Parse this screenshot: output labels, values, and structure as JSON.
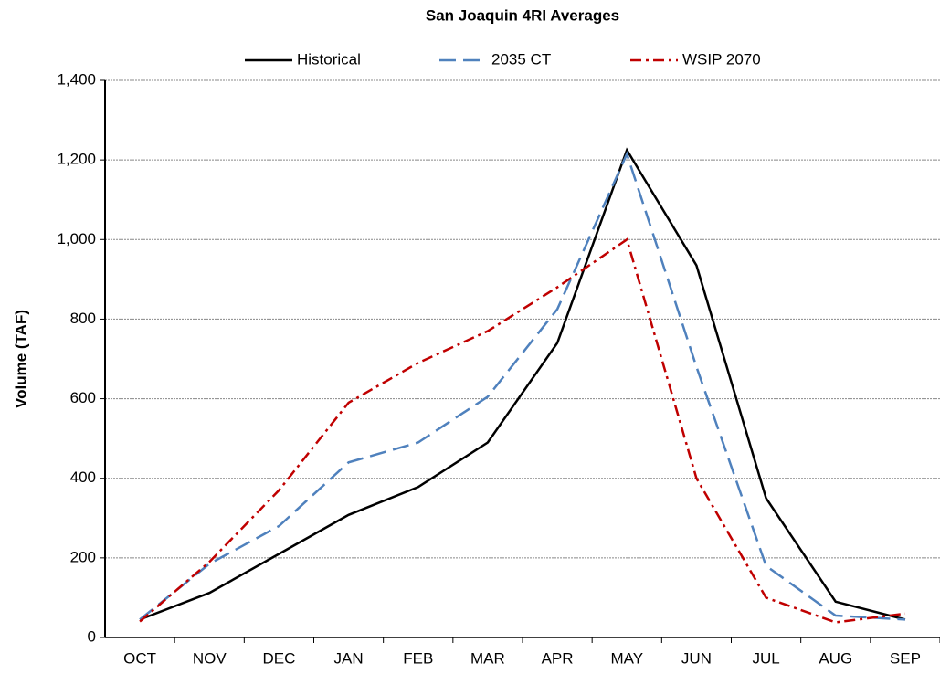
{
  "chart_data": {
    "type": "line",
    "title": "San Joaquin 4RI Averages",
    "y_label": "Volume (TAF)",
    "categories": [
      "OCT",
      "NOV",
      "DEC",
      "JAN",
      "FEB",
      "MAR",
      "APR",
      "MAY",
      "JUN",
      "JUL",
      "AUG",
      "SEP"
    ],
    "series": [
      {
        "name": "Historical",
        "color": "#000000",
        "dash": "solid",
        "values": [
          45,
          112,
          210,
          308,
          378,
          490,
          740,
          1225,
          935,
          350,
          90,
          45
        ]
      },
      {
        "name": "2035 CT",
        "color": "#4f81bd",
        "dash": "dash",
        "values": [
          45,
          185,
          280,
          440,
          490,
          605,
          825,
          1215,
          680,
          180,
          55,
          45
        ]
      },
      {
        "name": "WSIP 2070",
        "color": "#c00000",
        "dash": "dashdot",
        "values": [
          40,
          190,
          370,
          590,
          690,
          770,
          880,
          1000,
          400,
          100,
          38,
          60
        ]
      }
    ],
    "ylim": [
      0,
      1400
    ],
    "yticks": [
      0,
      200,
      400,
      600,
      800,
      {
        "value": 1000,
        "label": "1,000"
      },
      {
        "value": 1200,
        "label": "1,200"
      },
      {
        "value": 1400,
        "label": "1,400"
      }
    ],
    "grid": true,
    "legend": "top"
  }
}
